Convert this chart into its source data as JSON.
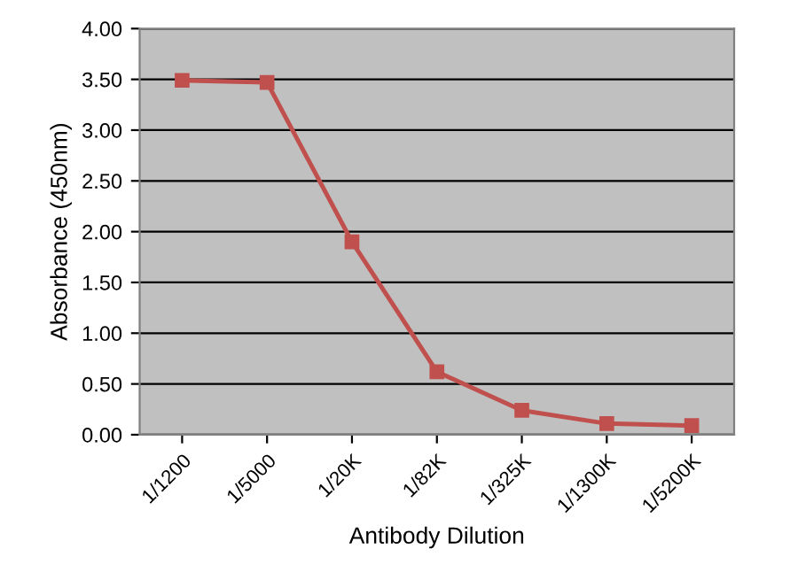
{
  "chart_data": {
    "type": "line",
    "xlabel": "Antibody Dilution",
    "ylabel": "Absorbance (450nm)",
    "categories": [
      "1/1200",
      "1/5000",
      "1/20K",
      "1/82K",
      "1/325K",
      "1/1300K",
      "1/5200K"
    ],
    "series": [
      {
        "color": "#c0504d",
        "values": [
          3.49,
          3.47,
          1.9,
          0.62,
          0.24,
          0.11,
          0.09
        ]
      }
    ],
    "ylim": [
      0,
      4
    ],
    "yticks": [
      {
        "value": 0,
        "label": "0.00"
      },
      {
        "value": 0.5,
        "label": "0.50"
      },
      {
        "value": 1,
        "label": "1.00"
      },
      {
        "value": 1.5,
        "label": "1.50"
      },
      {
        "value": 2,
        "label": "2.00"
      },
      {
        "value": 2.5,
        "label": "2.50"
      },
      {
        "value": 3,
        "label": "3.00"
      },
      {
        "value": 3.5,
        "label": "3.50"
      },
      {
        "value": 4,
        "label": "4.00"
      }
    ],
    "grid": "y",
    "marker": "square",
    "line_style": "solid"
  }
}
